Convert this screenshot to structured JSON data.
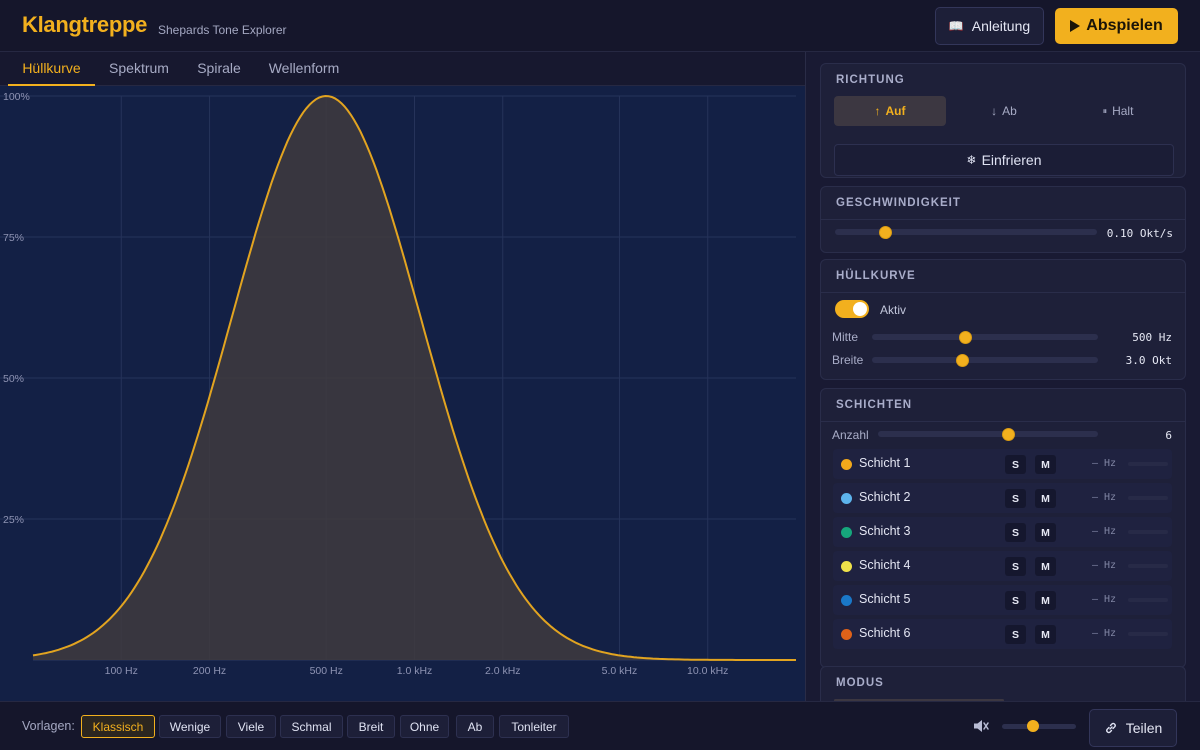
{
  "header": {
    "brand": "Klangtreppe",
    "subtitle": "Shepards Tone Explorer",
    "guide_label": "Anleitung",
    "play_label": "Abspielen"
  },
  "tabs": [
    {
      "label": "Hüllkurve",
      "active": true
    },
    {
      "label": "Spektrum",
      "active": false
    },
    {
      "label": "Spirale",
      "active": false
    },
    {
      "label": "Wellenform",
      "active": false
    }
  ],
  "chart_data": {
    "type": "area",
    "xscale": "log",
    "xlim": [
      50,
      20000
    ],
    "ylim": [
      0,
      100
    ],
    "y_ticks": [
      "100%",
      "75%",
      "50%",
      "25%"
    ],
    "x_ticks": [
      {
        "label": "100 Hz",
        "hz": 100
      },
      {
        "label": "200 Hz",
        "hz": 200
      },
      {
        "label": "500 Hz",
        "hz": 500
      },
      {
        "label": "1.0 kHz",
        "hz": 1000
      },
      {
        "label": "2.0 kHz",
        "hz": 2000
      },
      {
        "label": "5.0 kHz",
        "hz": 5000
      },
      {
        "label": "10.0 kHz",
        "hz": 10000
      }
    ],
    "envelope": {
      "center_hz": 500,
      "width_oct": 3.0,
      "peak": 100
    },
    "colors": {
      "line": "#e2a420",
      "fill": "#3f3b3e"
    },
    "grid": true
  },
  "richtung": {
    "title": "RICHTUNG",
    "options": [
      {
        "label": "Auf",
        "glyph": "↑",
        "active": true
      },
      {
        "label": "Ab",
        "glyph": "↓",
        "active": false
      },
      {
        "label": "Halt",
        "glyph": "⏸",
        "active": false
      }
    ],
    "freeze_label": "Einfrieren",
    "freeze_glyph": "❄"
  },
  "geschwindigkeit": {
    "title": "GESCHWINDIGKEIT",
    "value_label": "0.10 Okt/s",
    "fraction": 0.19
  },
  "huellkurve": {
    "title": "HÜLLKURVE",
    "toggle_label": "Aktiv",
    "enabled": true,
    "mitte": {
      "label": "Mitte",
      "value_label": "500 Hz",
      "fraction": 0.41
    },
    "breite": {
      "label": "Breite",
      "value_label": "3.0 Okt",
      "fraction": 0.4
    }
  },
  "schichten": {
    "title": "SCHICHTEN",
    "anzahl_label": "Anzahl",
    "anzahl_value": "6",
    "anzahl_fraction": 0.59,
    "solo_label": "S",
    "mute_label": "M",
    "hz_placeholder": "— Hz",
    "layers": [
      {
        "name": "Schicht 1",
        "color": "#f2a81b"
      },
      {
        "name": "Schicht 2",
        "color": "#5db4ec"
      },
      {
        "name": "Schicht 3",
        "color": "#16a77c"
      },
      {
        "name": "Schicht 4",
        "color": "#efe24a"
      },
      {
        "name": "Schicht 5",
        "color": "#1a78c8"
      },
      {
        "name": "Schicht 6",
        "color": "#df6219"
      }
    ]
  },
  "modus": {
    "title": "MODUS"
  },
  "footer": {
    "presets_label": "Vorlagen:",
    "presets": [
      {
        "label": "Klassisch",
        "active": true
      },
      {
        "label": "Wenige",
        "active": false
      },
      {
        "label": "Viele",
        "active": false
      },
      {
        "label": "Schmal",
        "active": false
      },
      {
        "label": "Breit",
        "active": false
      },
      {
        "label": "Ohne",
        "active": false
      },
      {
        "label": "Ab",
        "active": false
      },
      {
        "label": "Tonleiter",
        "active": false
      }
    ],
    "volume": 0.42,
    "share_label": "Teilen"
  }
}
